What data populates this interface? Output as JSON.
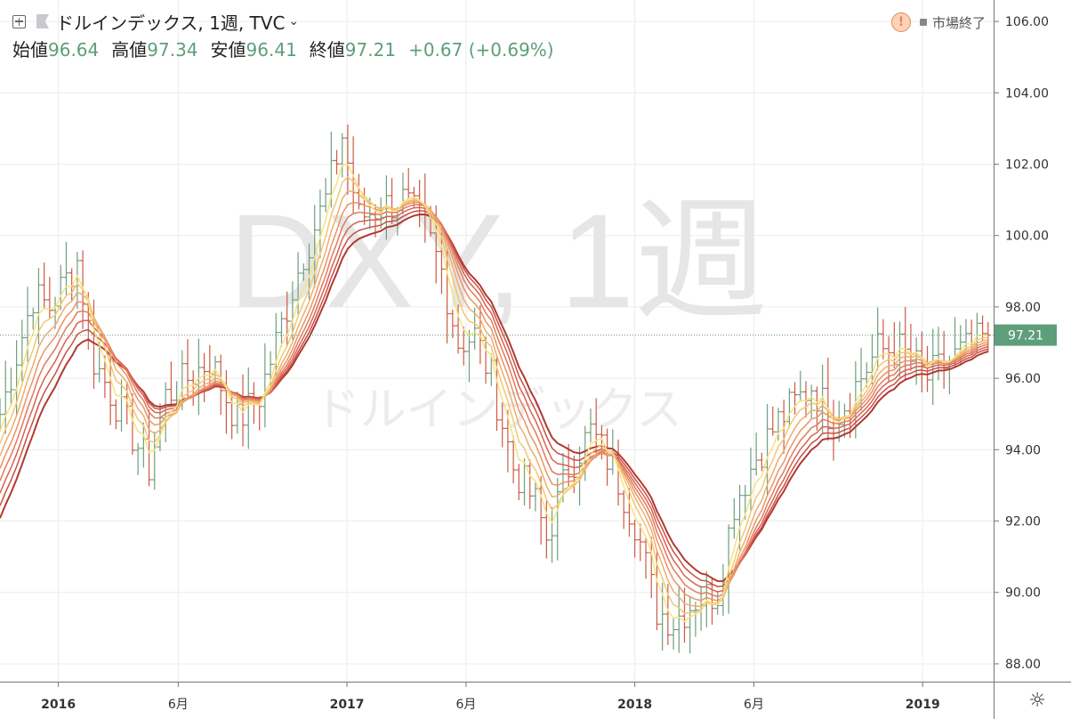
{
  "header": {
    "symbol_title": "ドルインデックス, 1週, TVC",
    "open_label": "始値",
    "open_value": "96.64",
    "high_label": "高値",
    "high_value": "97.34",
    "low_label": "安値",
    "low_value": "96.41",
    "close_label": "終値",
    "close_value": "97.21",
    "change": "+0.67 (+0.69%)"
  },
  "status": {
    "market_closed": "市場終了"
  },
  "watermark": {
    "main": "DXY, 1週",
    "sub": "ドルインデックス"
  },
  "colors": {
    "up": "#6f9e7e",
    "down": "#cc5a45",
    "value_text": "#5e9e7a",
    "last_price_bg": "#5f9e7b"
  },
  "icons": {
    "expand": "plus-square-icon",
    "flag": "flag-icon",
    "warning": "exclamation-icon",
    "settings": "settings-gear-icon"
  },
  "chart_data": {
    "type": "ohlc",
    "timeframe": "1週",
    "y_ticks": [
      "88.00",
      "90.00",
      "92.00",
      "94.00",
      "96.00",
      "98.00",
      "100.00",
      "102.00",
      "104.00",
      "106.00"
    ],
    "ylim": [
      87.5,
      106.6
    ],
    "x_ticks": [
      {
        "label": "2016",
        "date": "2016-01-01",
        "bold": true
      },
      {
        "label": "6月",
        "date": "2016-06-01",
        "bold": false
      },
      {
        "label": "2017",
        "date": "2017-01-01",
        "bold": true
      },
      {
        "label": "6月",
        "date": "2017-06-01",
        "bold": false
      },
      {
        "label": "2018",
        "date": "2018-01-01",
        "bold": true
      },
      {
        "label": "6月",
        "date": "2018-06-01",
        "bold": false
      },
      {
        "label": "2019",
        "date": "2019-01-01",
        "bold": true
      }
    ],
    "xlim": [
      "2015-10-19",
      "2019-04-01"
    ],
    "last_price": "97.21",
    "price_path": [
      [
        "2015-10-19",
        95.0
      ],
      [
        "2015-11-30",
        98.3
      ],
      [
        "2015-12-21",
        98.0
      ],
      [
        "2016-01-25",
        99.3
      ],
      [
        "2016-02-15",
        96.5
      ],
      [
        "2016-03-21",
        95.0
      ],
      [
        "2016-04-25",
        93.5
      ],
      [
        "2016-05-16",
        95.5
      ],
      [
        "2016-06-13",
        96.0
      ],
      [
        "2016-07-11",
        96.5
      ],
      [
        "2016-08-15",
        94.8
      ],
      [
        "2016-09-12",
        95.5
      ],
      [
        "2016-10-10",
        97.5
      ],
      [
        "2016-11-07",
        99.5
      ],
      [
        "2016-12-05",
        101.0
      ],
      [
        "2016-12-26",
        102.8
      ],
      [
        "2017-01-16",
        100.5
      ],
      [
        "2017-02-13",
        100.8
      ],
      [
        "2017-03-13",
        101.0
      ],
      [
        "2017-04-10",
        100.2
      ],
      [
        "2017-05-01",
        99.0
      ],
      [
        "2017-05-22",
        97.0
      ],
      [
        "2017-06-12",
        97.2
      ],
      [
        "2017-07-03",
        96.0
      ],
      [
        "2017-07-31",
        93.5
      ],
      [
        "2017-08-28",
        92.5
      ],
      [
        "2017-09-11",
        91.5
      ],
      [
        "2017-10-09",
        93.5
      ],
      [
        "2017-11-06",
        94.5
      ],
      [
        "2017-12-04",
        93.5
      ],
      [
        "2018-01-01",
        92.0
      ],
      [
        "2018-01-29",
        89.5
      ],
      [
        "2018-02-19",
        89.2
      ],
      [
        "2018-03-19",
        89.8
      ],
      [
        "2018-04-16",
        90.0
      ],
      [
        "2018-05-07",
        92.5
      ],
      [
        "2018-06-04",
        93.8
      ],
      [
        "2018-07-02",
        94.8
      ],
      [
        "2018-08-13",
        95.8
      ],
      [
        "2018-09-10",
        94.8
      ],
      [
        "2018-10-08",
        95.8
      ],
      [
        "2018-11-05",
        96.8
      ],
      [
        "2018-12-03",
        96.8
      ],
      [
        "2019-01-07",
        96.0
      ],
      [
        "2019-02-04",
        96.5
      ],
      [
        "2019-03-04",
        96.9
      ],
      [
        "2019-03-25",
        97.21
      ]
    ],
    "moving_average_ribbon": {
      "line_count": 8,
      "periods": [
        4,
        6,
        8,
        10,
        12,
        14,
        16,
        18
      ],
      "colors": [
        "#f6e37c",
        "#f3c774",
        "#efad6d",
        "#ea9465",
        "#e27a5c",
        "#d76352",
        "#ca4f45",
        "#b03a32"
      ]
    }
  }
}
